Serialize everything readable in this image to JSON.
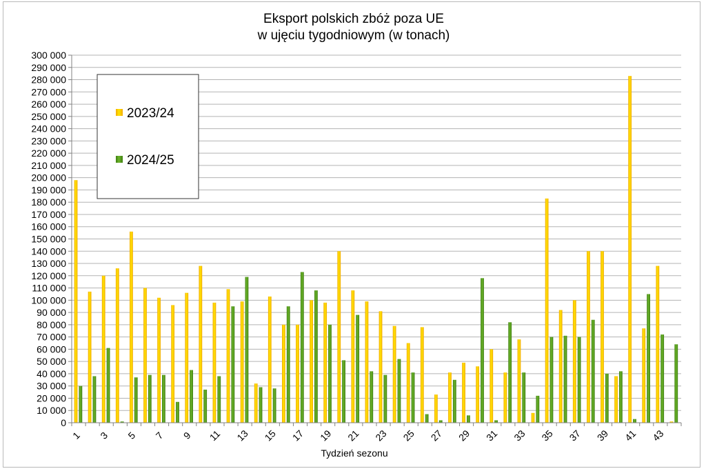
{
  "chart_data": {
    "type": "bar",
    "title": "Eksport polskich zbóż poza UE",
    "subtitle": "w ujęciu tygodniowym (w tonach)",
    "xlabel": "Tydzień sezonu",
    "ylabel": "",
    "ylim": [
      0,
      300000
    ],
    "ytick_step": 10000,
    "grid": true,
    "legend_position": "top-left",
    "categories": [
      1,
      2,
      3,
      4,
      5,
      6,
      7,
      8,
      9,
      10,
      11,
      12,
      13,
      14,
      15,
      16,
      17,
      18,
      19,
      20,
      21,
      22,
      23,
      24,
      25,
      26,
      27,
      28,
      29,
      30,
      31,
      32,
      33,
      34,
      35,
      36,
      37,
      38,
      39,
      40,
      41,
      42,
      43,
      44
    ],
    "x_tick_labels": [
      "1",
      "3",
      "5",
      "7",
      "9",
      "11",
      "13",
      "15",
      "17",
      "19",
      "21",
      "23",
      "25",
      "27",
      "29",
      "31",
      "33",
      "35",
      "37",
      "39",
      "41",
      "43"
    ],
    "y_tick_labels": [
      "0",
      "10 000",
      "20 000",
      "30 000",
      "40 000",
      "50 000",
      "60 000",
      "70 000",
      "80 000",
      "90 000",
      "100 000",
      "110 000",
      "120 000",
      "130 000",
      "140 000",
      "150 000",
      "160 000",
      "170 000",
      "180 000",
      "190 000",
      "200 000",
      "210 000",
      "220 000",
      "230 000",
      "240 000",
      "250 000",
      "260 000",
      "270 000",
      "280 000",
      "290 000",
      "300 000"
    ],
    "series": [
      {
        "name": "2023/24",
        "color": "#f5c400",
        "values": [
          198000,
          107000,
          120000,
          126000,
          156000,
          110000,
          102000,
          96000,
          106000,
          128000,
          98000,
          109000,
          99000,
          32000,
          103000,
          80000,
          80000,
          100000,
          98000,
          140000,
          108000,
          99000,
          91000,
          79000,
          65000,
          78000,
          23000,
          41000,
          49000,
          46000,
          60000,
          41000,
          68000,
          8000,
          183000,
          92000,
          100000,
          140000,
          140000,
          38000,
          283000,
          77000,
          128000,
          1000
        ]
      },
      {
        "name": "2024/25",
        "color": "#5a9e1e",
        "values": [
          30000,
          38000,
          61000,
          1000,
          37000,
          39000,
          39000,
          17000,
          43000,
          27000,
          38000,
          95000,
          119000,
          29000,
          28000,
          95000,
          123000,
          108000,
          80000,
          51000,
          88000,
          42000,
          39000,
          52000,
          41000,
          7000,
          2000,
          35000,
          6000,
          118000,
          2000,
          82000,
          41000,
          22000,
          70000,
          71000,
          70000,
          84000,
          40000,
          42000,
          3000,
          105000,
          72000,
          64000
        ]
      }
    ]
  }
}
